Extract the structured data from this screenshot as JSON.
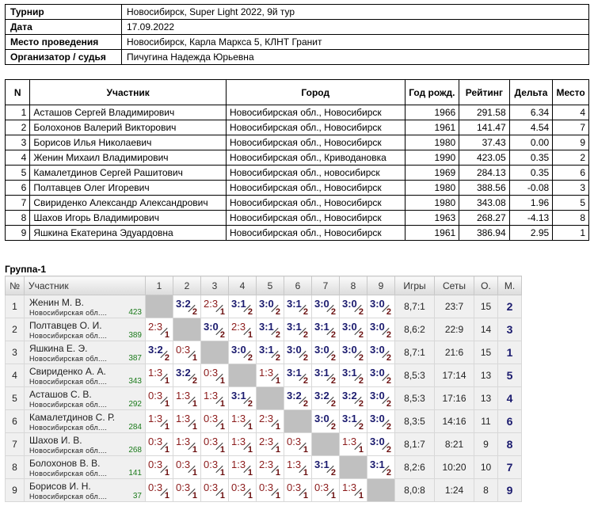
{
  "info": [
    {
      "label": "Турнир",
      "value": "Новосибирск, Super Light 2022, 9й тур"
    },
    {
      "label": "Дата",
      "value": "17.09.2022"
    },
    {
      "label": "Место проведения",
      "value": "Новосибирск, Карла Маркса 5, КЛНТ Гранит"
    },
    {
      "label": "Организатор / судья",
      "value": "Пичугина Надежда Юрьевна"
    }
  ],
  "participants": {
    "headers": [
      "N",
      "Участник",
      "Город",
      "Год рожд.",
      "Рейтинг",
      "Дельта",
      "Место"
    ],
    "rows": [
      [
        "1",
        "Асташов Сергей Владимирович",
        "Новосибирская обл., Новосибирск",
        "1966",
        "291.58",
        "6.34",
        "4"
      ],
      [
        "2",
        "Болохонов Валерий Викторович",
        "Новосибирская обл., Новосибирск",
        "1961",
        "141.47",
        "4.54",
        "7"
      ],
      [
        "3",
        "Борисов Илья Николаевич",
        "Новосибирская обл., Новосибирск",
        "1980",
        "37.43",
        "0.00",
        "9"
      ],
      [
        "4",
        "Женин Михаил Владимирович",
        "Новосибирская обл., Криводановка",
        "1990",
        "423.05",
        "0.35",
        "2"
      ],
      [
        "5",
        "Камалетдинов Сергей Рашитович",
        "Новосибирская обл., новосибирск",
        "1969",
        "284.13",
        "0.35",
        "6"
      ],
      [
        "6",
        "Полтавцев Олег Игоревич",
        "Новосибирская обл., Новосибирск",
        "1980",
        "388.56",
        "-0.08",
        "3"
      ],
      [
        "7",
        "Свириденко Александр Александрович",
        "Новосибирская обл., Новосибирск",
        "1980",
        "343.08",
        "1.96",
        "5"
      ],
      [
        "8",
        "Шахов Игорь Владимирович",
        "Новосибирская обл., Новосибирск",
        "1963",
        "268.27",
        "-4.13",
        "8"
      ],
      [
        "9",
        "Яшкина Екатерина Эдуардовна",
        "Новосибирская обл., Новосибирск",
        "1961",
        "386.94",
        "2.95",
        "1"
      ]
    ]
  },
  "group": {
    "title": "Группа-1",
    "headers": [
      "№",
      "Участник",
      "1",
      "2",
      "3",
      "4",
      "5",
      "6",
      "7",
      "8",
      "9",
      "Игры",
      "Сеты",
      "О.",
      "М."
    ],
    "rows": [
      {
        "n": "1",
        "name": "Женин М. В.",
        "region": "Новосибирская обл....",
        "rating": "423",
        "results": [
          "",
          "3:2",
          "2:3",
          "3:1",
          "3:0",
          "3:1",
          "3:0",
          "3:0",
          "3:0"
        ],
        "games": "8,7:1",
        "sets": "23:7",
        "points": "15",
        "place": "2"
      },
      {
        "n": "2",
        "name": "Полтавцев О. И.",
        "region": "Новосибирская обл....",
        "rating": "389",
        "results": [
          "2:3",
          "",
          "3:0",
          "2:3",
          "3:1",
          "3:1",
          "3:1",
          "3:0",
          "3:0"
        ],
        "games": "8,6:2",
        "sets": "22:9",
        "points": "14",
        "place": "3"
      },
      {
        "n": "3",
        "name": "Яшкина Е. Э.",
        "region": "Новосибирская обл....",
        "rating": "387",
        "results": [
          "3:2",
          "0:3",
          "",
          "3:0",
          "3:1",
          "3:0",
          "3:0",
          "3:0",
          "3:0"
        ],
        "games": "8,7:1",
        "sets": "21:6",
        "points": "15",
        "place": "1"
      },
      {
        "n": "4",
        "name": "Свириденко А. А.",
        "region": "Новосибирская обл....",
        "rating": "343",
        "results": [
          "1:3",
          "3:2",
          "0:3",
          "",
          "1:3",
          "3:1",
          "3:1",
          "3:1",
          "3:0"
        ],
        "games": "8,5:3",
        "sets": "17:14",
        "points": "13",
        "place": "5"
      },
      {
        "n": "5",
        "name": "Асташов С. В.",
        "region": "Новосибирская обл....",
        "rating": "292",
        "results": [
          "0:3",
          "1:3",
          "1:3",
          "3:1",
          "",
          "3:2",
          "3:2",
          "3:2",
          "3:0"
        ],
        "games": "8,5:3",
        "sets": "17:16",
        "points": "13",
        "place": "4"
      },
      {
        "n": "6",
        "name": "Камалетдинов С. Р.",
        "region": "Новосибирская обл....",
        "rating": "284",
        "results": [
          "1:3",
          "1:3",
          "0:3",
          "1:3",
          "2:3",
          "",
          "3:0",
          "3:1",
          "3:0"
        ],
        "games": "8,3:5",
        "sets": "14:16",
        "points": "11",
        "place": "6"
      },
      {
        "n": "7",
        "name": "Шахов И. В.",
        "region": "Новосибирская обл....",
        "rating": "268",
        "results": [
          "0:3",
          "1:3",
          "0:3",
          "1:3",
          "2:3",
          "0:3",
          "",
          "1:3",
          "3:0"
        ],
        "games": "8,1:7",
        "sets": "8:21",
        "points": "9",
        "place": "8"
      },
      {
        "n": "8",
        "name": "Болохонов В. В.",
        "region": "Новосибирская обл....",
        "rating": "141",
        "results": [
          "0:3",
          "0:3",
          "0:3",
          "1:3",
          "2:3",
          "1:3",
          "3:1",
          "",
          "3:1"
        ],
        "games": "8,2:6",
        "sets": "10:20",
        "points": "10",
        "place": "7"
      },
      {
        "n": "9",
        "name": "Борисов И. Н.",
        "region": "Новосибирская обл....",
        "rating": "37",
        "results": [
          "0:3",
          "0:3",
          "0:3",
          "0:3",
          "0:3",
          "0:3",
          "0:3",
          "1:3",
          ""
        ],
        "games": "8,0:8",
        "sets": "1:24",
        "points": "8",
        "place": "9"
      }
    ],
    "win_points": "2",
    "loss_points": "1",
    "colors": {
      "win": "#1a1a6e",
      "loss": "#8b1a1a",
      "rating": "#1a7a1a"
    }
  }
}
